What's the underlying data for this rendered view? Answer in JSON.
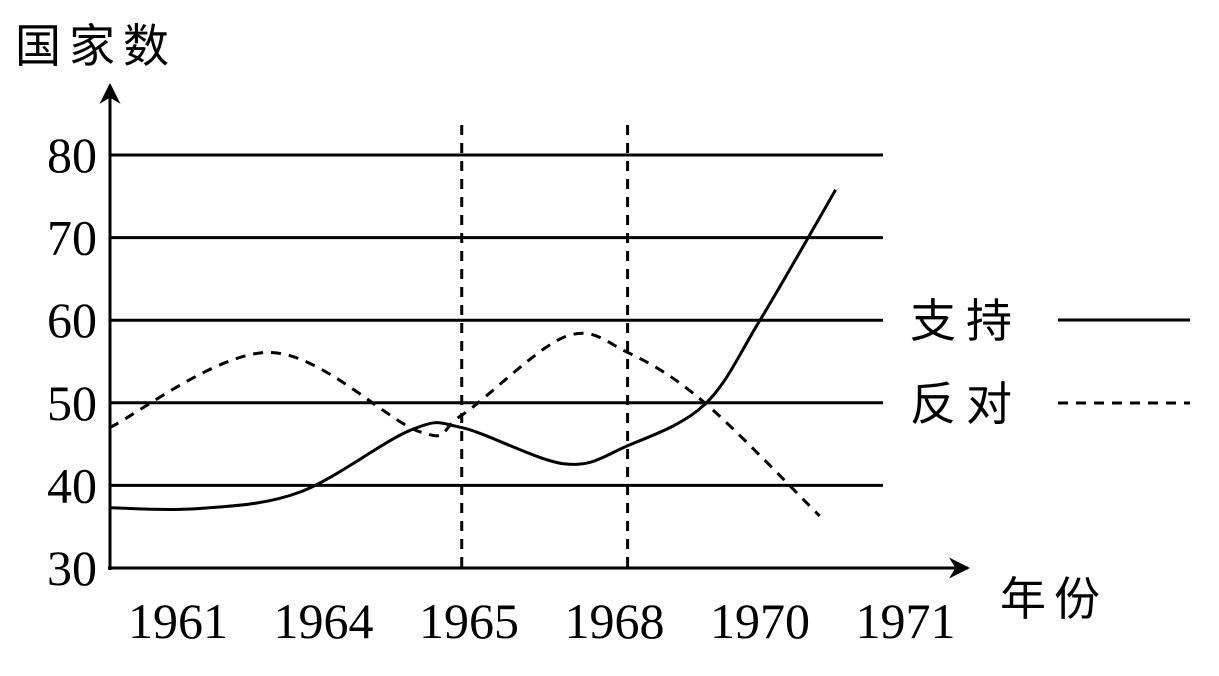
{
  "chart_data": {
    "type": "line",
    "ylabel": "国家数",
    "xlabel": "年份",
    "categories": [
      "1961",
      "1964",
      "1965",
      "1968",
      "1970",
      "1971"
    ],
    "yticks": [
      30,
      40,
      50,
      60,
      70,
      80
    ],
    "ylim": [
      30,
      85
    ],
    "grid": "horizontal at y ticks",
    "vertical_dashed_markers_at_category_index": [
      1.95,
      3.09
    ],
    "legend_placement": "right",
    "series": [
      {
        "name": "支持",
        "style": "solid",
        "x": [
          -0.47,
          0.15,
          0.84,
          1.6,
          1.95,
          2.66,
          3.09,
          3.62,
          4.0,
          4.52
        ],
        "y": [
          37.3,
          37.2,
          39.2,
          46.7,
          47.0,
          42.6,
          44.8,
          49.8,
          60.0,
          75.8
        ]
      },
      {
        "name": "反对",
        "style": "dashed",
        "x": [
          -0.47,
          0.63,
          1.66,
          1.95,
          2.66,
          3.09,
          3.62,
          4.41
        ],
        "y": [
          47.0,
          56.1,
          46.5,
          48.5,
          58.0,
          56.1,
          50.0,
          36.3
        ]
      }
    ]
  }
}
